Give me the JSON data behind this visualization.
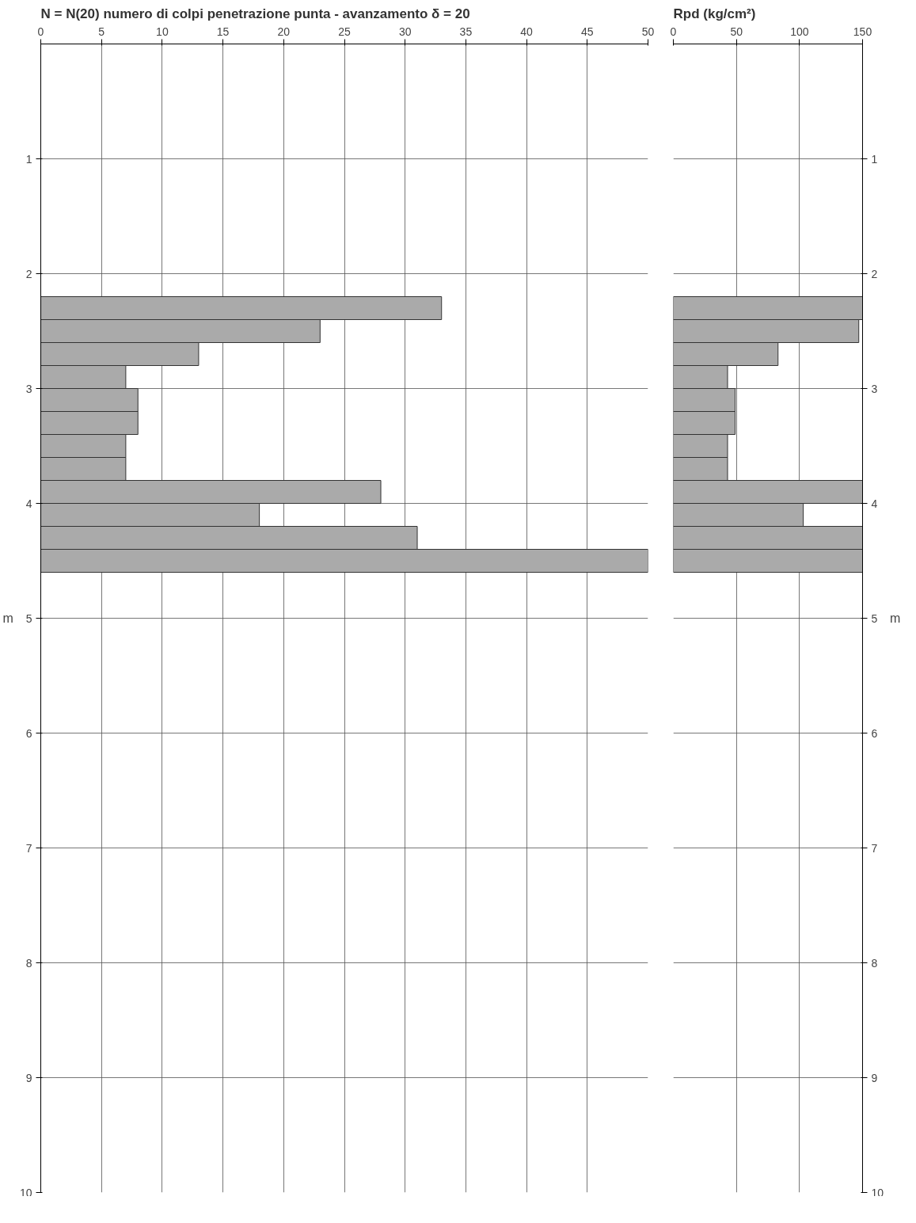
{
  "chart_data": [
    {
      "type": "bar",
      "orientation": "horizontal",
      "title": "N = N(20)  numero di colpi penetrazione punta  -  avanzamento  δ = 20",
      "ylabel": "m",
      "x": [
        2.3,
        2.5,
        2.7,
        2.9,
        3.1,
        3.3,
        3.5,
        3.7,
        3.9,
        4.1,
        4.3,
        4.5
      ],
      "series": [
        {
          "color": "#aaaaaa",
          "values": [
            33,
            23,
            13,
            7,
            8,
            8,
            7,
            7,
            28,
            18,
            31,
            50
          ]
        }
      ],
      "xlim": [
        0,
        50
      ],
      "xticks": [
        0,
        5,
        10,
        15,
        20,
        25,
        30,
        35,
        40,
        45,
        50
      ],
      "ylim": [
        10,
        0
      ],
      "yticks": [
        1,
        2,
        3,
        4,
        5,
        6,
        7,
        8,
        9,
        10
      ],
      "grid": true
    },
    {
      "type": "bar",
      "orientation": "horizontal",
      "title": "Rpd (kg/cm²)",
      "ylabel": "m",
      "x": [
        2.3,
        2.5,
        2.7,
        2.9,
        3.1,
        3.3,
        3.5,
        3.7,
        3.9,
        4.1,
        4.3,
        4.5
      ],
      "series": [
        {
          "color": "#aaaaaa",
          "values": [
            150,
            147,
            83,
            43,
            49,
            49,
            43,
            43,
            150,
            103,
            150,
            150
          ]
        }
      ],
      "xlim": [
        0,
        150
      ],
      "xticks": [
        0,
        50,
        100,
        150
      ],
      "ylim": [
        10,
        0
      ],
      "yticks": [
        1,
        2,
        3,
        4,
        5,
        6,
        7,
        8,
        9,
        10
      ],
      "grid": true
    }
  ]
}
